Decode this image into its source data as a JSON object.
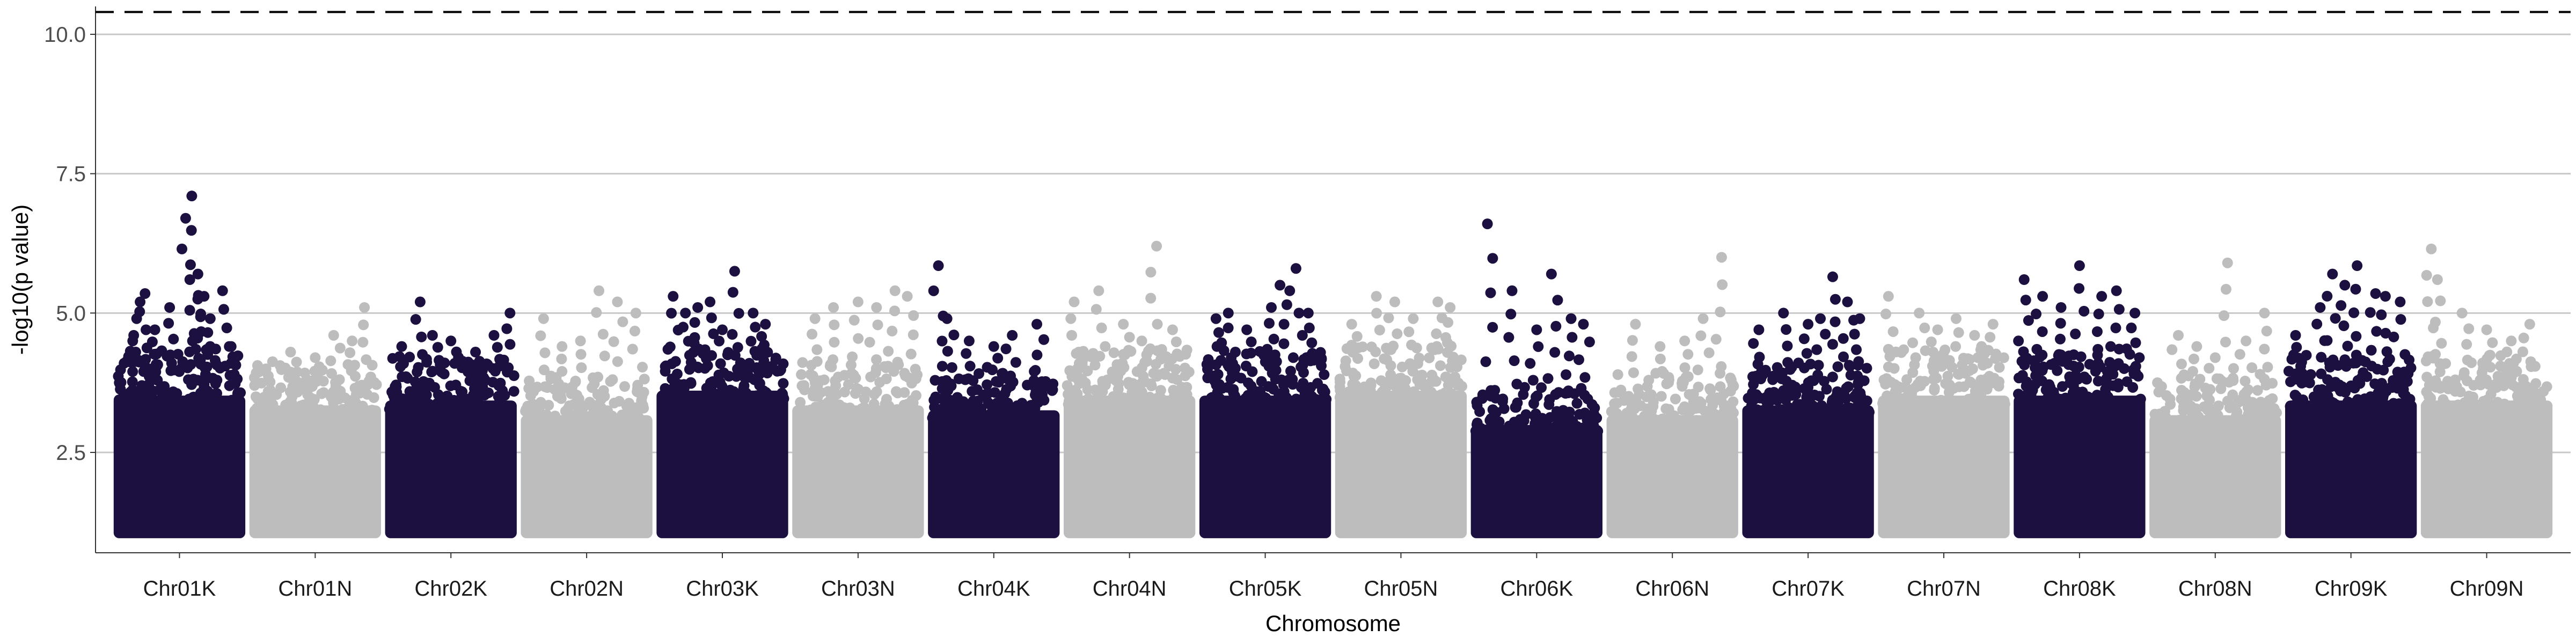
{
  "chart_data": {
    "type": "scatter",
    "subtype": "manhattan",
    "title": "",
    "xlabel": "Chromosome",
    "ylabel": "-log10(p value)",
    "ylim": [
      0.7,
      10.5
    ],
    "yticks": [
      2.5,
      5.0,
      7.5,
      10.0
    ],
    "ytick_labels": [
      "2.5",
      "5.0",
      "7.5",
      "10.0"
    ],
    "grid": "horizontal",
    "threshold": {
      "value": 10.4,
      "style": "dashed",
      "color": "#000000"
    },
    "colors": {
      "odd": "#1c1040",
      "even": "#bdbdbd"
    },
    "categories": [
      "Chr01K",
      "Chr01N",
      "Chr02K",
      "Chr02N",
      "Chr03K",
      "Chr03N",
      "Chr04K",
      "Chr04N",
      "Chr05K",
      "Chr05N",
      "Chr06K",
      "Chr06N",
      "Chr07K",
      "Chr07N",
      "Chr08K",
      "Chr08N",
      "Chr09K",
      "Chr09N"
    ],
    "series": [
      {
        "chromosome": "Chr01K",
        "bulk_top": 4.0,
        "peaks": [
          [
            0.05,
            4.1
          ],
          [
            0.12,
            4.5
          ],
          [
            0.18,
            5.2
          ],
          [
            0.22,
            5.35
          ],
          [
            0.3,
            4.7
          ],
          [
            0.42,
            5.1
          ],
          [
            0.55,
            6.7
          ],
          [
            0.6,
            7.1
          ],
          [
            0.65,
            5.7
          ],
          [
            0.7,
            5.3
          ],
          [
            0.75,
            4.9
          ],
          [
            0.85,
            5.4
          ],
          [
            0.92,
            4.4
          ]
        ]
      },
      {
        "chromosome": "Chr01N",
        "bulk_top": 3.8,
        "peaks": [
          [
            0.1,
            4.0
          ],
          [
            0.3,
            4.3
          ],
          [
            0.5,
            4.2
          ],
          [
            0.65,
            4.6
          ],
          [
            0.8,
            4.5
          ],
          [
            0.9,
            5.1
          ]
        ]
      },
      {
        "chromosome": "Chr02K",
        "bulk_top": 3.9,
        "peaks": [
          [
            0.1,
            4.4
          ],
          [
            0.25,
            5.2
          ],
          [
            0.35,
            4.6
          ],
          [
            0.5,
            4.5
          ],
          [
            0.7,
            4.3
          ],
          [
            0.85,
            4.6
          ],
          [
            0.98,
            5.0
          ]
        ]
      },
      {
        "chromosome": "Chr02N",
        "bulk_top": 3.6,
        "peaks": [
          [
            0.15,
            4.9
          ],
          [
            0.3,
            4.4
          ],
          [
            0.45,
            4.5
          ],
          [
            0.6,
            5.4
          ],
          [
            0.75,
            5.2
          ],
          [
            0.9,
            5.0
          ]
        ]
      },
      {
        "chromosome": "Chr03K",
        "bulk_top": 4.1,
        "peaks": [
          [
            0.1,
            5.3
          ],
          [
            0.2,
            5.0
          ],
          [
            0.3,
            5.1
          ],
          [
            0.4,
            5.2
          ],
          [
            0.5,
            4.7
          ],
          [
            0.6,
            5.75
          ],
          [
            0.75,
            5.0
          ],
          [
            0.85,
            4.8
          ]
        ]
      },
      {
        "chromosome": "Chr03N",
        "bulk_top": 3.8,
        "peaks": [
          [
            0.15,
            4.9
          ],
          [
            0.3,
            5.1
          ],
          [
            0.5,
            5.2
          ],
          [
            0.65,
            5.1
          ],
          [
            0.8,
            5.4
          ],
          [
            0.9,
            5.3
          ]
        ]
      },
      {
        "chromosome": "Chr04K",
        "bulk_top": 3.7,
        "peaks": [
          [
            0.05,
            5.85
          ],
          [
            0.12,
            4.9
          ],
          [
            0.3,
            4.5
          ],
          [
            0.5,
            4.4
          ],
          [
            0.65,
            4.6
          ],
          [
            0.85,
            4.8
          ]
        ]
      },
      {
        "chromosome": "Chr04N",
        "bulk_top": 4.0,
        "peaks": [
          [
            0.05,
            5.2
          ],
          [
            0.25,
            5.4
          ],
          [
            0.45,
            4.8
          ],
          [
            0.6,
            4.5
          ],
          [
            0.72,
            6.2
          ],
          [
            0.85,
            4.7
          ]
        ]
      },
      {
        "chromosome": "Chr05K",
        "bulk_top": 4.0,
        "peaks": [
          [
            0.1,
            4.9
          ],
          [
            0.2,
            5.0
          ],
          [
            0.35,
            4.7
          ],
          [
            0.55,
            5.1
          ],
          [
            0.62,
            5.5
          ],
          [
            0.75,
            5.8
          ],
          [
            0.85,
            5.0
          ]
        ]
      },
      {
        "chromosome": "Chr05N",
        "bulk_top": 4.1,
        "peaks": [
          [
            0.1,
            4.8
          ],
          [
            0.3,
            5.3
          ],
          [
            0.45,
            5.2
          ],
          [
            0.6,
            4.9
          ],
          [
            0.8,
            5.2
          ],
          [
            0.9,
            5.1
          ]
        ]
      },
      {
        "chromosome": "Chr06K",
        "bulk_top": 3.4,
        "peaks": [
          [
            0.1,
            6.6
          ],
          [
            0.3,
            5.4
          ],
          [
            0.5,
            4.7
          ],
          [
            0.62,
            5.7
          ],
          [
            0.78,
            4.9
          ],
          [
            0.88,
            4.8
          ]
        ]
      },
      {
        "chromosome": "Chr06N",
        "bulk_top": 3.6,
        "peaks": [
          [
            0.2,
            4.8
          ],
          [
            0.4,
            4.4
          ],
          [
            0.6,
            4.5
          ],
          [
            0.75,
            4.9
          ],
          [
            0.9,
            6.0
          ]
        ]
      },
      {
        "chromosome": "Chr07K",
        "bulk_top": 3.8,
        "peaks": [
          [
            0.1,
            4.7
          ],
          [
            0.3,
            5.0
          ],
          [
            0.5,
            4.8
          ],
          [
            0.6,
            4.9
          ],
          [
            0.7,
            5.65
          ],
          [
            0.82,
            5.2
          ],
          [
            0.92,
            4.9
          ]
        ]
      },
      {
        "chromosome": "Chr07N",
        "bulk_top": 4.0,
        "peaks": [
          [
            0.05,
            5.3
          ],
          [
            0.3,
            5.0
          ],
          [
            0.45,
            4.7
          ],
          [
            0.6,
            4.9
          ],
          [
            0.75,
            4.6
          ],
          [
            0.9,
            4.8
          ]
        ]
      },
      {
        "chromosome": "Chr08K",
        "bulk_top": 4.0,
        "peaks": [
          [
            0.05,
            5.6
          ],
          [
            0.2,
            5.3
          ],
          [
            0.35,
            5.1
          ],
          [
            0.5,
            5.85
          ],
          [
            0.68,
            5.3
          ],
          [
            0.8,
            5.4
          ],
          [
            0.95,
            5.0
          ]
        ]
      },
      {
        "chromosome": "Chr08N",
        "bulk_top": 3.6,
        "peaks": [
          [
            0.2,
            4.6
          ],
          [
            0.35,
            4.4
          ],
          [
            0.5,
            4.2
          ],
          [
            0.6,
            5.9
          ],
          [
            0.75,
            4.5
          ],
          [
            0.9,
            5.0
          ]
        ]
      },
      {
        "chromosome": "Chr09K",
        "bulk_top": 3.9,
        "peaks": [
          [
            0.05,
            4.6
          ],
          [
            0.25,
            5.1
          ],
          [
            0.35,
            5.7
          ],
          [
            0.45,
            5.5
          ],
          [
            0.55,
            5.85
          ],
          [
            0.7,
            5.35
          ],
          [
            0.78,
            5.3
          ],
          [
            0.9,
            5.2
          ]
        ]
      },
      {
        "chromosome": "Chr09N",
        "bulk_top": 3.9,
        "peaks": [
          [
            0.05,
            6.15
          ],
          [
            0.1,
            5.6
          ],
          [
            0.3,
            5.0
          ],
          [
            0.5,
            4.7
          ],
          [
            0.7,
            4.5
          ],
          [
            0.85,
            4.8
          ]
        ]
      }
    ]
  }
}
